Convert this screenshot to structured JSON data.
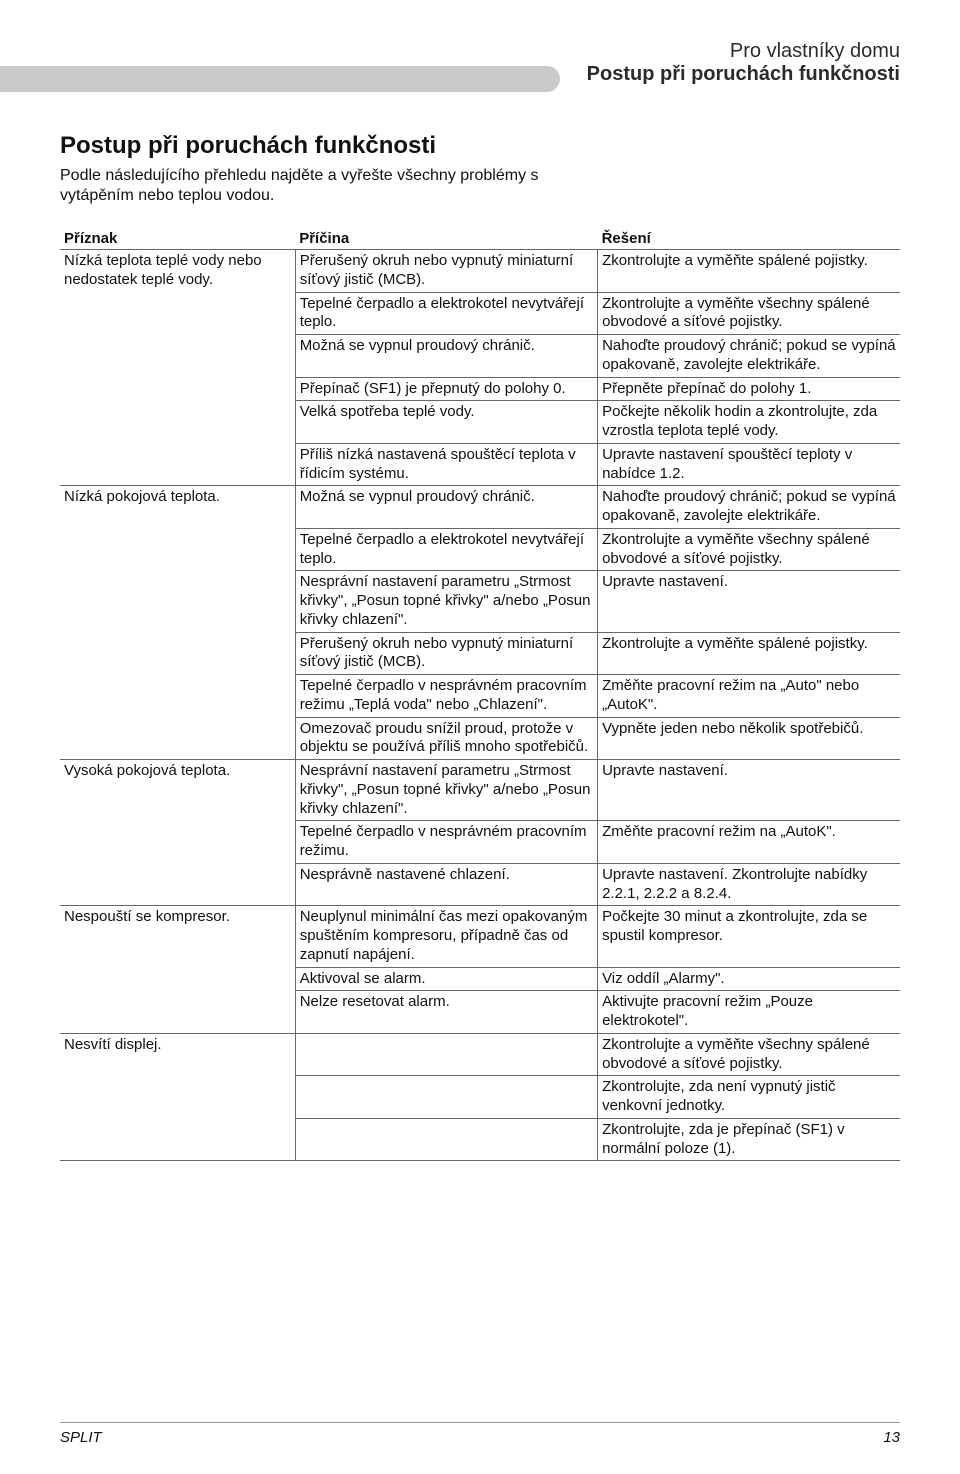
{
  "header": {
    "line1": "Pro vlastníky domu",
    "line2": "Postup při poruchách funkčnosti"
  },
  "section_title": "Postup při poruchách funkčnosti",
  "intro": "Podle následujícího přehledu najděte a vyřešte všechny problémy s vytápěním nebo teplou vodou.",
  "table": {
    "columns": [
      "Příznak",
      "Příčina",
      "Řešení"
    ],
    "col_widths": [
      "28%",
      "36%",
      "36%"
    ],
    "groups": [
      {
        "symptom": "Nízká teplota teplé vody nebo nedostatek teplé vody.",
        "rows": [
          {
            "cause": "Přerušený okruh nebo vypnutý miniaturní síťový jistič (MCB).",
            "fix": "Zkontrolujte a vyměňte spálené pojistky."
          },
          {
            "cause": "Tepelné čerpadlo a elektrokotel nevytvářejí teplo.",
            "fix": "Zkontrolujte a vyměňte všechny spálené obvodové a síťové pojistky."
          },
          {
            "cause": "Možná se vypnul proudový chránič.",
            "fix": "Nahoďte proudový chránič; pokud se vypíná opakovaně, zavolejte elektrikáře."
          },
          {
            "cause": "Přepínač (SF1) je přepnutý do polohy 0.",
            "fix": "Přepněte přepínač do polohy 1."
          },
          {
            "cause": "Velká spotřeba teplé vody.",
            "fix": "Počkejte několik hodin a zkontrolujte, zda vzrostla teplota teplé vody."
          },
          {
            "cause": "Příliš nízká nastavená spouštěcí teplota v řídicím systému.",
            "fix": "Upravte nastavení spouštěcí teploty v nabídce 1.2."
          }
        ]
      },
      {
        "symptom": "Nízká pokojová teplota.",
        "rows": [
          {
            "cause": "Možná se vypnul proudový chránič.",
            "fix": "Nahoďte proudový chránič; pokud se vypíná opakovaně, zavolejte elektrikáře."
          },
          {
            "cause": "Tepelné čerpadlo a elektrokotel nevytvářejí teplo.",
            "fix": "Zkontrolujte a vyměňte všechny spálené obvodové a síťové pojistky."
          },
          {
            "cause": "Nesprávní nastavení parametru „Strmost křivky\", „Posun topné křivky\" a/nebo „Posun křivky chlazení\".",
            "fix": "Upravte nastavení."
          },
          {
            "cause": "Přerušený okruh nebo vypnutý miniaturní síťový jistič (MCB).",
            "fix": "Zkontrolujte a vyměňte spálené pojistky."
          },
          {
            "cause": "Tepelné čerpadlo v nesprávném pracovním režimu „Teplá voda\" nebo „Chlazení\".",
            "fix": "Změňte pracovní režim na „Auto\" nebo „AutoK\"."
          },
          {
            "cause": "Omezovač proudu snížil proud, protože v objektu se používá příliš mnoho spotřebičů.",
            "fix": "Vypněte jeden nebo několik spotřebičů."
          }
        ]
      },
      {
        "symptom": "Vysoká pokojová teplota.",
        "rows": [
          {
            "cause": "Nesprávní nastavení parametru „Strmost křivky\", „Posun topné křivky\" a/nebo „Posun křivky chlazení\".",
            "fix": "Upravte nastavení."
          },
          {
            "cause": "Tepelné čerpadlo v nesprávném pracovním režimu.",
            "fix": "Změňte pracovní režim na „AutoK\"."
          },
          {
            "cause": "Nesprávně nastavené chlazení.",
            "fix": "Upravte nastavení. Zkontrolujte nabídky 2.2.1, 2.2.2 a 8.2.4."
          }
        ]
      },
      {
        "symptom": "Nespouští se kompresor.",
        "rows": [
          {
            "cause": "Neuplynul minimální čas mezi opakovaným spuštěním kompresoru, případně čas od zapnutí napájení.",
            "fix": "Počkejte 30 minut a zkontrolujte, zda se spustil kompresor."
          },
          {
            "cause": "Aktivoval se alarm.",
            "fix": "Viz oddíl „Alarmy\"."
          },
          {
            "cause": "Nelze resetovat alarm.",
            "fix": "Aktivujte pracovní režim „Pouze elektrokotel\"."
          }
        ]
      },
      {
        "symptom": "Nesvítí displej.",
        "rows": [
          {
            "cause": "",
            "fix": "Zkontrolujte a vyměňte všechny spálené obvodové a síťové pojistky."
          },
          {
            "cause": "",
            "fix": "Zkontrolujte, zda není vypnutý jistič venkovní jednotky."
          },
          {
            "cause": "",
            "fix": "Zkontrolujte, zda je přepínač (SF1) v normální poloze (1)."
          }
        ]
      }
    ]
  },
  "footer": {
    "doc": "SPLIT",
    "page": "13"
  }
}
